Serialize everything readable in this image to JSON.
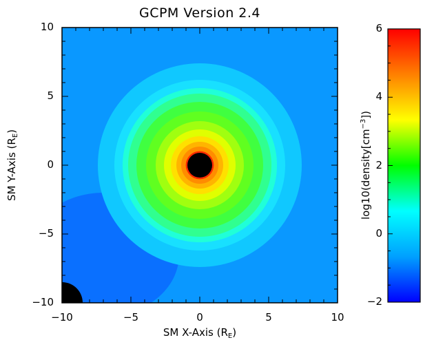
{
  "chart_data": {
    "type": "heatmap",
    "title": "GCPM Version 2.4",
    "xlabel": {
      "text": "SM X-Axis (R",
      "sub": "E",
      "end": ")"
    },
    "ylabel": {
      "text": "SM Y-Axis (R",
      "sub": "E",
      "end": ")"
    },
    "xlim": [
      -10,
      10
    ],
    "ylim": [
      -10,
      10
    ],
    "xticks": [
      -10,
      -5,
      0,
      5,
      10
    ],
    "yticks": [
      -10,
      -5,
      0,
      5,
      10
    ],
    "xtick_labels": [
      "−10",
      "−5",
      "0",
      "5",
      "10"
    ],
    "ytick_labels": [
      "−10",
      "−5",
      "0",
      "5",
      "10"
    ],
    "colorbar": {
      "label": {
        "text": "log10(density[cm",
        "sup": "−3",
        "end": "])"
      },
      "range": [
        -2,
        6
      ],
      "ticks": [
        -2,
        0,
        2,
        4,
        6
      ],
      "tick_labels": [
        "−2",
        "0",
        "2",
        "4",
        "6"
      ],
      "colormap": [
        "#0000ff",
        "#00a0ff",
        "#00ffff",
        "#00ff00",
        "#ffff00",
        "#ff8000",
        "#ff0000"
      ]
    },
    "field_description": "log10 plasma density in the SM X-Y plane; peak near Earth, decreasing radially with the plasmapause near 5 R_E",
    "earth": {
      "center": [
        0,
        0
      ],
      "radius": 0.9,
      "color": "#000000"
    },
    "no_data_region": {
      "center": [
        -10,
        -10
      ],
      "radius": 1.5,
      "color": "#000000"
    },
    "grid": false
  }
}
